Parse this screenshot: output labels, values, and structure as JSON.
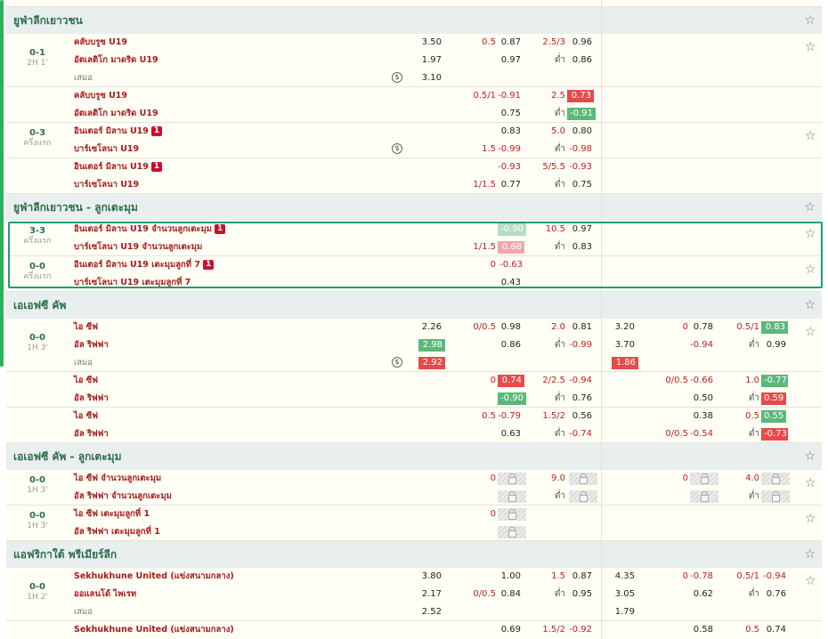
{
  "leagues": [
    {
      "name": "ยูฟ่าลีกเยาวชน"
    },
    {
      "name": "ยูฟ่าลีกเยาวชน - ลูกเตะมุม"
    },
    {
      "name": "เอเอฟซี คัพ"
    },
    {
      "name": "เอเอฟซี คัพ - ลูกเตะมุม"
    },
    {
      "name": "แอฟริกาใต้ พรีเมียร์ลีก"
    }
  ],
  "m1": {
    "score": "0-1",
    "time": "2H 1'",
    "home": "คลับบรูซ U19",
    "away": "อัตเลติโก มาดริด U19",
    "draw": "เสมอ",
    "r1": {
      "x1": "3.50",
      "hdp": "0.5",
      "ho": "0.87",
      "ou": "2.5/3",
      "oo": "0.96"
    },
    "r2": {
      "x1": "1.97",
      "ao": "0.97",
      "und": "ต่ำ",
      "uo": "0.86"
    },
    "r3": {
      "x1": "3.10"
    },
    "alt": {
      "hdp": "0.5/1",
      "ho": "-0.91",
      "ou": "2.5",
      "oo": "0.73",
      "ao": "0.75",
      "und": "ต่ำ",
      "uo": "-0.91"
    }
  },
  "m2": {
    "score": "0-3",
    "time": "ครึ่งแรก",
    "home": "อินเตอร์ มิลาน U19",
    "away": "บาร์เซโลนา U19",
    "rc": "1",
    "r1": {
      "ho": "0.83",
      "ou": "5.0",
      "oo": "0.80"
    },
    "r2": {
      "hdp": "1.5",
      "ao": "-0.99",
      "und": "ต่ำ",
      "uo": "-0.98"
    },
    "alt": {
      "ho": "-0.93",
      "ou": "5/5.5",
      "oo": "-0.93",
      "hdp": "1/1.5",
      "ao": "0.77",
      "und": "ต่ำ",
      "uo": "0.75"
    }
  },
  "m3": {
    "score": "3-3",
    "time": "ครึ่งแรก",
    "home": "อินเตอร์ มิลาน U19 จำนวนลูกเตะมุม",
    "away": "บาร์เซโลนา U19 จำนวนลูกเตะมุม",
    "rc": "1",
    "r1": {
      "ho": "-0.90",
      "ou": "10.5",
      "oo": "0.97"
    },
    "r2": {
      "hdp": "1/1.5",
      "ao": "0.68",
      "und": "ต่ำ",
      "uo": "0.83"
    }
  },
  "m4": {
    "score": "0-0",
    "time": "ครึ่งแรก",
    "home": "อินเตอร์ มิลาน U19 เตะมุมลูกที่ 7",
    "away": "บาร์เซโลนา U19 เตะมุมลูกที่ 7",
    "rc": "1",
    "r1": {
      "hdp": "0",
      "ho": "-0.63"
    },
    "r2": {
      "ao": "0.43"
    }
  },
  "m5": {
    "score": "0-0",
    "time": "1H 3'",
    "home": "ไอ ซีฟ",
    "away": "อัล ริฟฟา",
    "draw": "เสมอ",
    "r1": {
      "x1": "2.26",
      "hdp": "0/0.5",
      "ho": "0.98",
      "ou": "2.0",
      "oo": "0.81",
      "fx1": "3.20",
      "fhdp": "0",
      "fho": "0.78",
      "fou": "0.5/1",
      "foo": "0.83"
    },
    "r2": {
      "x1": "2.98",
      "ao": "0.86",
      "und": "ต่ำ",
      "uo": "-0.99",
      "fx1": "3.70",
      "fao": "-0.94",
      "fund": "ต่ำ",
      "fuo": "0.99"
    },
    "r3": {
      "x1": "2.92",
      "fx1": "1.86"
    },
    "alt1": {
      "hdp": "0",
      "ho": "0.74",
      "ou": "2/2.5",
      "oo": "-0.94",
      "fhdp": "0/0.5",
      "fho": "-0.66",
      "fou": "1.0",
      "foo": "-0.77",
      "ao": "-0.90",
      "und": "ต่ำ",
      "uo": "0.76",
      "fao": "0.50",
      "fund": "ต่ำ",
      "fuo": "0.59"
    },
    "alt2": {
      "hdp": "0.5",
      "ho": "-0.79",
      "ou": "1.5/2",
      "oo": "0.56",
      "fho": "0.38",
      "fou": "0.5",
      "foo": "0.55",
      "ao": "0.63",
      "und": "ต่ำ",
      "uo": "-0.74",
      "fhdp": "0/0.5",
      "fao": "-0.54",
      "fund": "ต่ำ",
      "fuo": "-0.73"
    }
  },
  "m6": {
    "score": "0-0",
    "time": "1H 3'",
    "home": "ไอ ซีฟ จำนวนลูกเตะมุม",
    "away": "อัล ริฟฟา จำนวนลูกเตะมุม",
    "hdp": "0",
    "ou": "9.0",
    "und": "ต่ำ",
    "fhdp": "0",
    "fou": "4.0",
    "fund": "ต่ำ"
  },
  "m7": {
    "score": "0-0",
    "time": "1H 3'",
    "home": "ไอ ซีฟ เตะมุมลูกที่ 1",
    "away": "อัล ริฟฟา เตะมุมลูกที่ 1",
    "hdp": "0"
  },
  "m8": {
    "score": "0-0",
    "time": "1H 2'",
    "home": "Sekhukhune United (แข่งสนามกลาง)",
    "away": "ออแลนโด้ ไพเรท",
    "draw": "เสมอ",
    "r1": {
      "x1": "3.80",
      "ho": "1.00",
      "ou": "1.5",
      "oo": "0.87",
      "fx1": "4.35",
      "fhdp": "0",
      "fho": "-0.78",
      "fou": "0.5/1",
      "foo": "-0.94"
    },
    "r2": {
      "x1": "2.17",
      "hdp": "0/0.5",
      "ao": "0.84",
      "und": "ต่ำ",
      "uo": "0.95",
      "fx1": "3.05",
      "fao": "0.62",
      "fund": "ต่ำ",
      "fuo": "0.76"
    },
    "r3": {
      "x1": "2.52",
      "fx1": "1.79"
    },
    "alt": {
      "home": "Sekhukhune United (แข่งสนามกลาง)",
      "ho": "0.69",
      "ou": "1.5/2",
      "oo": "-0.92",
      "fho": "0.58",
      "fou": "0.5",
      "foo": "0.74"
    }
  },
  "icons": {
    "star": "star-icon",
    "clock": "clock-icon",
    "lock": "lock-icon",
    "redcard": "red-card-icon"
  }
}
